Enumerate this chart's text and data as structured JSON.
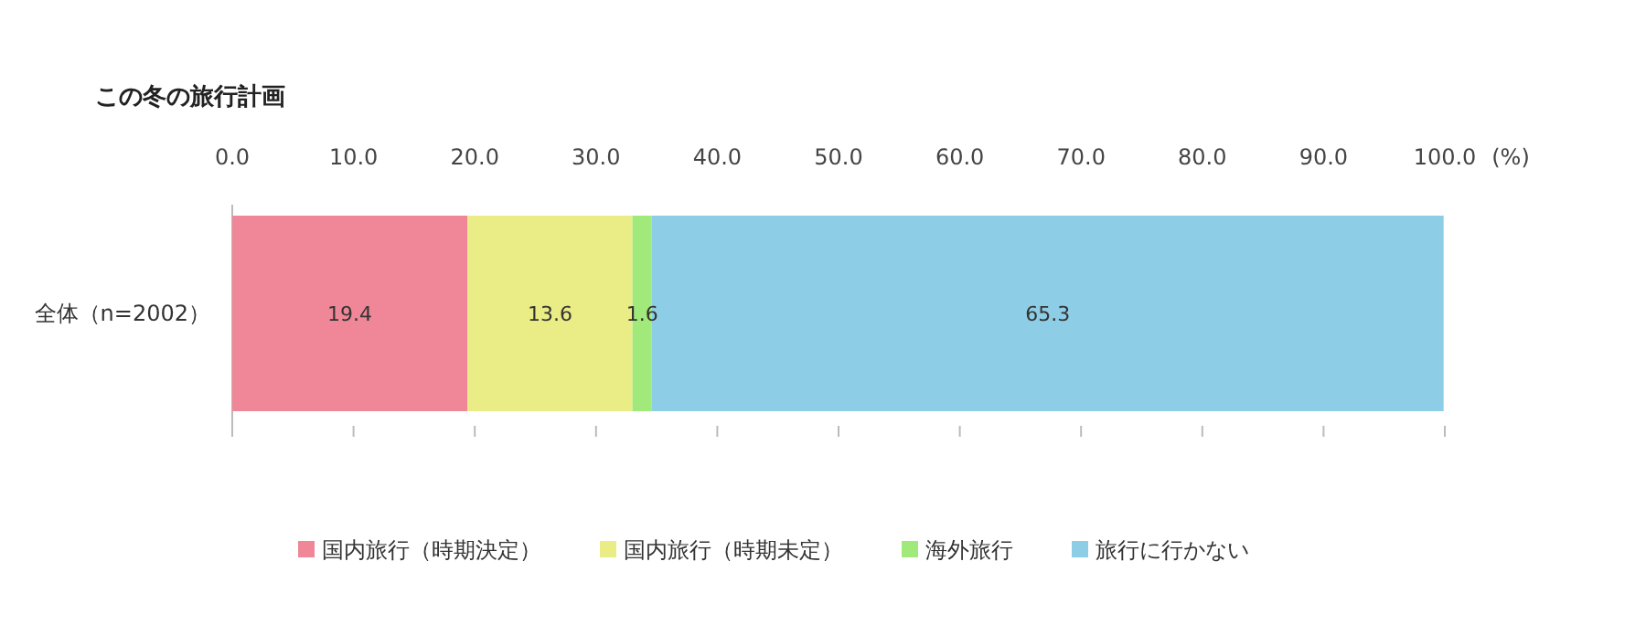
{
  "chart_data": {
    "type": "bar",
    "orientation": "horizontal",
    "stacked": true,
    "title": "この冬の旅行計画",
    "xlabel": "(%)",
    "categories": [
      "全体（n=2002）"
    ],
    "series": [
      {
        "name": "国内旅行（時期決定）",
        "color": "#ef8798",
        "values": [
          19.4
        ]
      },
      {
        "name": "国内旅行（時期未定）",
        "color": "#eaed85",
        "values": [
          13.6
        ]
      },
      {
        "name": "海外旅行",
        "color": "#a2e97b",
        "values": [
          1.6
        ]
      },
      {
        "name": "旅行に行かない",
        "color": "#8ecde6",
        "values": [
          65.3
        ]
      }
    ],
    "xlim": [
      0,
      100
    ],
    "xticks": [
      {
        "value": 0,
        "label": "0.0"
      },
      {
        "value": 10,
        "label": "10.0"
      },
      {
        "value": 20,
        "label": "20.0"
      },
      {
        "value": 30,
        "label": "30.0"
      },
      {
        "value": 40,
        "label": "40.0"
      },
      {
        "value": 50,
        "label": "50.0"
      },
      {
        "value": 60,
        "label": "60.0"
      },
      {
        "value": 70,
        "label": "70.0"
      },
      {
        "value": 80,
        "label": "80.0"
      },
      {
        "value": 90,
        "label": "90.0"
      },
      {
        "value": 100,
        "label": "100.0"
      }
    ],
    "data_labels": true,
    "grid": false,
    "legend": "bottom"
  }
}
